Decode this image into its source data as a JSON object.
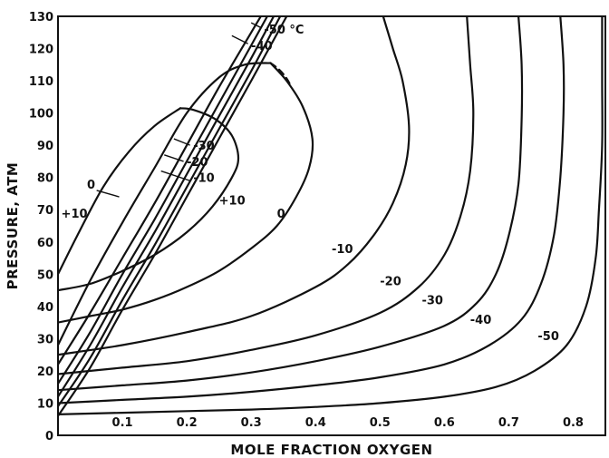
{
  "chart_data": {
    "type": "line",
    "title": "",
    "xlabel": "MOLE FRACTION OXYGEN",
    "ylabel": "PRESSURE, ATM",
    "xlim": [
      0,
      0.85
    ],
    "ylim": [
      0,
      130
    ],
    "grid": false,
    "x_ticks": [
      "0.1",
      "0.2",
      "0.3",
      "0.4",
      "0.5",
      "0.6",
      "0.7",
      "0.8"
    ],
    "y_ticks": [
      "0",
      "10",
      "20",
      "30",
      "40",
      "50",
      "60",
      "70",
      "80",
      "90",
      "100",
      "110",
      "120",
      "130"
    ],
    "series": [
      {
        "name": "+10",
        "label": "+10",
        "bubble": [
          [
            0,
            45
          ],
          [
            0.05,
            47
          ],
          [
            0.1,
            51
          ],
          [
            0.15,
            56
          ],
          [
            0.2,
            63
          ],
          [
            0.24,
            71
          ],
          [
            0.27,
            80
          ],
          [
            0.28,
            86
          ],
          [
            0.27,
            93
          ],
          [
            0.245,
            98
          ],
          [
            0.21,
            101
          ],
          [
            0.19,
            101.5
          ]
        ],
        "dew": [
          [
            0,
            50
          ],
          [
            0.03,
            62
          ],
          [
            0.07,
            77
          ],
          [
            0.11,
            88
          ],
          [
            0.15,
            96
          ],
          [
            0.19,
            101.5
          ]
        ]
      },
      {
        "name": "0",
        "label": "0",
        "bubble": [
          [
            0,
            35
          ],
          [
            0.05,
            37
          ],
          [
            0.1,
            39
          ],
          [
            0.15,
            42
          ],
          [
            0.2,
            46
          ],
          [
            0.25,
            51
          ],
          [
            0.3,
            58
          ],
          [
            0.34,
            65
          ],
          [
            0.37,
            74
          ],
          [
            0.39,
            83
          ],
          [
            0.395,
            92
          ],
          [
            0.38,
            102
          ],
          [
            0.355,
            110
          ],
          [
            0.33,
            115.5
          ]
        ],
        "dew": [
          [
            0,
            28
          ],
          [
            0.05,
            48
          ],
          [
            0.1,
            66
          ],
          [
            0.15,
            83
          ],
          [
            0.2,
            100
          ],
          [
            0.25,
            111
          ],
          [
            0.29,
            115
          ],
          [
            0.33,
            115.5
          ]
        ]
      },
      {
        "name": "-10",
        "label": "-10",
        "bubble": [
          [
            0,
            25
          ],
          [
            0.1,
            28
          ],
          [
            0.2,
            32
          ],
          [
            0.3,
            37
          ],
          [
            0.4,
            46
          ],
          [
            0.45,
            53
          ],
          [
            0.49,
            62
          ],
          [
            0.52,
            72
          ],
          [
            0.54,
            84
          ],
          [
            0.545,
            96
          ],
          [
            0.535,
            110
          ],
          [
            0.52,
            120
          ],
          [
            0.505,
            130
          ]
        ],
        "dew": [
          [
            0,
            22
          ],
          [
            0.05,
            38
          ],
          [
            0.1,
            55
          ],
          [
            0.15,
            72
          ],
          [
            0.2,
            90
          ],
          [
            0.25,
            108
          ],
          [
            0.3,
            125
          ],
          [
            0.315,
            130
          ]
        ]
      },
      {
        "name": "-20",
        "label": "-20",
        "bubble": [
          [
            0,
            19
          ],
          [
            0.1,
            21
          ],
          [
            0.2,
            23
          ],
          [
            0.3,
            26.5
          ],
          [
            0.4,
            31
          ],
          [
            0.5,
            38
          ],
          [
            0.56,
            46
          ],
          [
            0.6,
            56
          ],
          [
            0.625,
            68
          ],
          [
            0.64,
            82
          ],
          [
            0.645,
            100
          ],
          [
            0.64,
            115
          ],
          [
            0.635,
            130
          ]
        ],
        "dew": [
          [
            0,
            16
          ],
          [
            0.05,
            32
          ],
          [
            0.1,
            50
          ],
          [
            0.15,
            67
          ],
          [
            0.2,
            85
          ],
          [
            0.25,
            103
          ],
          [
            0.3,
            121
          ],
          [
            0.325,
            130
          ]
        ]
      },
      {
        "name": "-30",
        "label": "-30",
        "bubble": [
          [
            0,
            14
          ],
          [
            0.1,
            15.5
          ],
          [
            0.2,
            17
          ],
          [
            0.3,
            19.5
          ],
          [
            0.4,
            23
          ],
          [
            0.5,
            27.5
          ],
          [
            0.6,
            34
          ],
          [
            0.65,
            41
          ],
          [
            0.68,
            50
          ],
          [
            0.7,
            62
          ],
          [
            0.715,
            78
          ],
          [
            0.72,
            98
          ],
          [
            0.72,
            115
          ],
          [
            0.715,
            130
          ]
        ],
        "dew": [
          [
            0,
            12
          ],
          [
            0.05,
            28
          ],
          [
            0.1,
            46
          ],
          [
            0.15,
            63
          ],
          [
            0.2,
            81
          ],
          [
            0.25,
            99
          ],
          [
            0.3,
            117
          ],
          [
            0.335,
            130
          ]
        ]
      },
      {
        "name": "-40",
        "label": "-40",
        "bubble": [
          [
            0,
            10
          ],
          [
            0.1,
            11
          ],
          [
            0.2,
            12
          ],
          [
            0.3,
            13.5
          ],
          [
            0.4,
            15.5
          ],
          [
            0.5,
            18
          ],
          [
            0.6,
            22
          ],
          [
            0.67,
            28
          ],
          [
            0.72,
            36
          ],
          [
            0.75,
            47
          ],
          [
            0.77,
            62
          ],
          [
            0.78,
            80
          ],
          [
            0.785,
            100
          ],
          [
            0.785,
            115
          ],
          [
            0.78,
            130
          ]
        ],
        "dew": [
          [
            0,
            9
          ],
          [
            0.05,
            24
          ],
          [
            0.1,
            42
          ],
          [
            0.15,
            59
          ],
          [
            0.2,
            77
          ],
          [
            0.25,
            95
          ],
          [
            0.3,
            113
          ],
          [
            0.345,
            130
          ]
        ]
      },
      {
        "name": "-50",
        "label": "-50 °C",
        "bubble": [
          [
            0,
            6.5
          ],
          [
            0.1,
            7
          ],
          [
            0.2,
            7.5
          ],
          [
            0.3,
            8
          ],
          [
            0.4,
            8.8
          ],
          [
            0.5,
            10
          ],
          [
            0.6,
            12
          ],
          [
            0.68,
            15
          ],
          [
            0.74,
            20
          ],
          [
            0.79,
            28
          ],
          [
            0.82,
            40
          ],
          [
            0.835,
            55
          ],
          [
            0.84,
            70
          ],
          [
            0.845,
            90
          ],
          [
            0.845,
            110
          ],
          [
            0.845,
            130
          ]
        ],
        "dew": [
          [
            0,
            6
          ],
          [
            0.05,
            21
          ],
          [
            0.1,
            39
          ],
          [
            0.15,
            56
          ],
          [
            0.2,
            74
          ],
          [
            0.25,
            92
          ],
          [
            0.3,
            110
          ],
          [
            0.355,
            130
          ]
        ]
      }
    ],
    "annotations": [
      {
        "id": "p10",
        "text": "+10",
        "at": [
          0.005,
          69
        ]
      },
      {
        "id": "p0",
        "text": "0",
        "at": [
          0.045,
          78
        ]
      },
      {
        "id": "m10",
        "text": "-10",
        "at": [
          0.21,
          80
        ]
      },
      {
        "id": "p10b",
        "text": "+10",
        "at": [
          0.25,
          73
        ]
      },
      {
        "id": "m20",
        "text": "-20",
        "at": [
          0.2,
          85
        ]
      },
      {
        "id": "m30",
        "text": "-30",
        "at": [
          0.21,
          90
        ]
      },
      {
        "id": "m40",
        "text": "-40",
        "at": [
          0.3,
          121
        ]
      },
      {
        "id": "m50",
        "text": "-50 °C",
        "at": [
          0.32,
          126
        ]
      },
      {
        "id": "b0",
        "text": "0",
        "at": [
          0.34,
          69
        ]
      },
      {
        "id": "bm10",
        "text": "-10",
        "at": [
          0.425,
          58
        ]
      },
      {
        "id": "bm20",
        "text": "-20",
        "at": [
          0.5,
          48
        ]
      },
      {
        "id": "bm30",
        "text": "-30",
        "at": [
          0.565,
          42
        ]
      },
      {
        "id": "bm40",
        "text": "-40",
        "at": [
          0.64,
          36
        ]
      },
      {
        "id": "bm50",
        "text": "-50",
        "at": [
          0.745,
          31
        ]
      }
    ]
  }
}
